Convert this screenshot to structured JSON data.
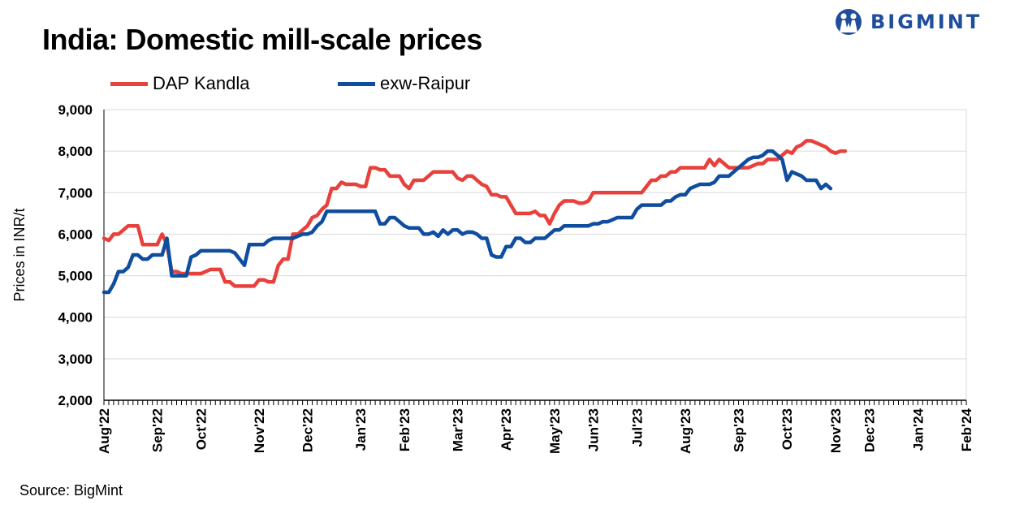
{
  "header": {
    "title": "India: Domestic mill-scale prices"
  },
  "brand": {
    "name": "BIGMINT",
    "color": "#1f4e9c",
    "icon": "people-logo-icon"
  },
  "footer": {
    "source": "Source: BigMint"
  },
  "chart_data": {
    "type": "line",
    "title": "India: Domestic mill-scale prices",
    "xlabel": "",
    "ylabel": "Prices in INR/t",
    "ylim": [
      2000,
      9000
    ],
    "yticks": [
      "9,000",
      "8,000",
      "7,000",
      "6,000",
      "5,000",
      "4,000",
      "3,000",
      "2,000"
    ],
    "ytick_values": [
      9000,
      8000,
      7000,
      6000,
      5000,
      4000,
      3000,
      2000
    ],
    "x_month_labels": [
      "Aug'22",
      "Sep'22",
      "Oct'22",
      "Nov'22",
      "Dec'22",
      "Jan'23",
      "Feb'23",
      "Mar'23",
      "Apr'23",
      "May'23",
      "Jun'23",
      "Jul'23",
      "Aug'23",
      "Sep'23",
      "Oct'23",
      "Nov'23",
      "Dec'23",
      "Jan'24",
      "Feb'24"
    ],
    "x_month_index": [
      0,
      11,
      20,
      32,
      42,
      53,
      62,
      73,
      83,
      93,
      101,
      110,
      120,
      131,
      141,
      151,
      158,
      168,
      178
    ],
    "n_points": 179,
    "legend_position": "top-left",
    "series": [
      {
        "name": "DAP Kandla",
        "color": "#e8413c",
        "points": [
          [
            0,
            5900
          ],
          [
            1,
            5850
          ],
          [
            2,
            6000
          ],
          [
            3,
            6000
          ],
          [
            4,
            6100
          ],
          [
            5,
            6200
          ],
          [
            6,
            6200
          ],
          [
            7,
            6200
          ],
          [
            8,
            5750
          ],
          [
            9,
            5750
          ],
          [
            10,
            5750
          ],
          [
            11,
            5750
          ],
          [
            12,
            6000
          ],
          [
            13,
            5750
          ],
          [
            14,
            5100
          ],
          [
            15,
            5100
          ],
          [
            16,
            5050
          ],
          [
            17,
            5050
          ],
          [
            18,
            5050
          ],
          [
            19,
            5050
          ],
          [
            20,
            5050
          ],
          [
            21,
            5100
          ],
          [
            22,
            5150
          ],
          [
            23,
            5150
          ],
          [
            24,
            5150
          ],
          [
            25,
            4850
          ],
          [
            26,
            4850
          ],
          [
            27,
            4750
          ],
          [
            28,
            4750
          ],
          [
            29,
            4750
          ],
          [
            30,
            4750
          ],
          [
            31,
            4750
          ],
          [
            32,
            4900
          ],
          [
            33,
            4900
          ],
          [
            34,
            4850
          ],
          [
            35,
            4850
          ],
          [
            36,
            5250
          ],
          [
            37,
            5400
          ],
          [
            38,
            5400
          ],
          [
            39,
            6000
          ],
          [
            40,
            6000
          ],
          [
            41,
            6100
          ],
          [
            42,
            6200
          ],
          [
            43,
            6400
          ],
          [
            44,
            6450
          ],
          [
            45,
            6600
          ],
          [
            46,
            6700
          ],
          [
            47,
            7100
          ],
          [
            48,
            7100
          ],
          [
            49,
            7250
          ],
          [
            50,
            7200
          ],
          [
            51,
            7200
          ],
          [
            52,
            7200
          ],
          [
            53,
            7150
          ],
          [
            54,
            7150
          ],
          [
            55,
            7600
          ],
          [
            56,
            7600
          ],
          [
            57,
            7550
          ],
          [
            58,
            7550
          ],
          [
            59,
            7400
          ],
          [
            60,
            7400
          ],
          [
            61,
            7400
          ],
          [
            62,
            7200
          ],
          [
            63,
            7100
          ],
          [
            64,
            7300
          ],
          [
            65,
            7300
          ],
          [
            66,
            7300
          ],
          [
            67,
            7400
          ],
          [
            68,
            7500
          ],
          [
            69,
            7500
          ],
          [
            70,
            7500
          ],
          [
            71,
            7500
          ],
          [
            72,
            7500
          ],
          [
            73,
            7350
          ],
          [
            74,
            7300
          ],
          [
            75,
            7400
          ],
          [
            76,
            7400
          ],
          [
            77,
            7300
          ],
          [
            78,
            7200
          ],
          [
            79,
            7150
          ],
          [
            80,
            6950
          ],
          [
            81,
            6950
          ],
          [
            82,
            6900
          ],
          [
            83,
            6900
          ],
          [
            84,
            6700
          ],
          [
            85,
            6500
          ],
          [
            86,
            6500
          ],
          [
            87,
            6500
          ],
          [
            88,
            6500
          ],
          [
            89,
            6550
          ],
          [
            90,
            6450
          ],
          [
            91,
            6450
          ],
          [
            92,
            6250
          ],
          [
            93,
            6500
          ],
          [
            94,
            6700
          ],
          [
            95,
            6800
          ],
          [
            96,
            6800
          ],
          [
            97,
            6800
          ],
          [
            98,
            6750
          ],
          [
            99,
            6750
          ],
          [
            100,
            6800
          ],
          [
            101,
            7000
          ],
          [
            102,
            7000
          ],
          [
            103,
            7000
          ],
          [
            104,
            7000
          ],
          [
            105,
            7000
          ],
          [
            106,
            7000
          ],
          [
            107,
            7000
          ],
          [
            108,
            7000
          ],
          [
            109,
            7000
          ],
          [
            110,
            7000
          ],
          [
            111,
            7000
          ],
          [
            112,
            7150
          ],
          [
            113,
            7300
          ],
          [
            114,
            7300
          ],
          [
            115,
            7400
          ],
          [
            116,
            7400
          ],
          [
            117,
            7500
          ],
          [
            118,
            7500
          ],
          [
            119,
            7600
          ],
          [
            120,
            7600
          ],
          [
            121,
            7600
          ],
          [
            122,
            7600
          ],
          [
            123,
            7600
          ],
          [
            124,
            7600
          ],
          [
            125,
            7800
          ],
          [
            126,
            7650
          ],
          [
            127,
            7800
          ],
          [
            128,
            7700
          ],
          [
            129,
            7600
          ],
          [
            130,
            7600
          ],
          [
            131,
            7600
          ],
          [
            132,
            7600
          ],
          [
            133,
            7600
          ],
          [
            134,
            7650
          ],
          [
            135,
            7700
          ],
          [
            136,
            7700
          ],
          [
            137,
            7800
          ],
          [
            138,
            7800
          ],
          [
            139,
            7800
          ],
          [
            140,
            7900
          ],
          [
            141,
            8000
          ],
          [
            142,
            7950
          ],
          [
            143,
            8100
          ],
          [
            144,
            8150
          ],
          [
            145,
            8250
          ],
          [
            146,
            8250
          ],
          [
            147,
            8200
          ],
          [
            148,
            8150
          ],
          [
            149,
            8100
          ],
          [
            150,
            8000
          ],
          [
            151,
            7950
          ],
          [
            152,
            8000
          ],
          [
            153,
            8000
          ]
        ]
      },
      {
        "name": "exw-Raipur",
        "color": "#0f4d9e",
        "points": [
          [
            0,
            4600
          ],
          [
            1,
            4600
          ],
          [
            2,
            4800
          ],
          [
            3,
            5100
          ],
          [
            4,
            5100
          ],
          [
            5,
            5200
          ],
          [
            6,
            5500
          ],
          [
            7,
            5500
          ],
          [
            8,
            5400
          ],
          [
            9,
            5400
          ],
          [
            10,
            5500
          ],
          [
            11,
            5500
          ],
          [
            12,
            5500
          ],
          [
            13,
            5900
          ],
          [
            14,
            5000
          ],
          [
            15,
            5000
          ],
          [
            16,
            5000
          ],
          [
            17,
            5000
          ],
          [
            18,
            5450
          ],
          [
            19,
            5500
          ],
          [
            20,
            5600
          ],
          [
            21,
            5600
          ],
          [
            22,
            5600
          ],
          [
            23,
            5600
          ],
          [
            24,
            5600
          ],
          [
            25,
            5600
          ],
          [
            26,
            5600
          ],
          [
            27,
            5550
          ],
          [
            28,
            5400
          ],
          [
            29,
            5250
          ],
          [
            30,
            5750
          ],
          [
            31,
            5750
          ],
          [
            32,
            5750
          ],
          [
            33,
            5750
          ],
          [
            34,
            5850
          ],
          [
            35,
            5900
          ],
          [
            36,
            5900
          ],
          [
            37,
            5900
          ],
          [
            38,
            5900
          ],
          [
            39,
            5900
          ],
          [
            40,
            5950
          ],
          [
            41,
            6000
          ],
          [
            42,
            6000
          ],
          [
            43,
            6050
          ],
          [
            44,
            6200
          ],
          [
            45,
            6300
          ],
          [
            46,
            6550
          ],
          [
            47,
            6550
          ],
          [
            48,
            6550
          ],
          [
            49,
            6550
          ],
          [
            50,
            6550
          ],
          [
            51,
            6550
          ],
          [
            52,
            6550
          ],
          [
            53,
            6550
          ],
          [
            54,
            6550
          ],
          [
            55,
            6550
          ],
          [
            56,
            6550
          ],
          [
            57,
            6250
          ],
          [
            58,
            6250
          ],
          [
            59,
            6400
          ],
          [
            60,
            6400
          ],
          [
            61,
            6300
          ],
          [
            62,
            6200
          ],
          [
            63,
            6150
          ],
          [
            64,
            6150
          ],
          [
            65,
            6150
          ],
          [
            66,
            6000
          ],
          [
            67,
            6000
          ],
          [
            68,
            6050
          ],
          [
            69,
            5950
          ],
          [
            70,
            6100
          ],
          [
            71,
            6000
          ],
          [
            72,
            6100
          ],
          [
            73,
            6100
          ],
          [
            74,
            6000
          ],
          [
            75,
            6050
          ],
          [
            76,
            6050
          ],
          [
            77,
            6000
          ],
          [
            78,
            5900
          ],
          [
            79,
            5900
          ],
          [
            80,
            5500
          ],
          [
            81,
            5450
          ],
          [
            82,
            5450
          ],
          [
            83,
            5700
          ],
          [
            84,
            5700
          ],
          [
            85,
            5900
          ],
          [
            86,
            5900
          ],
          [
            87,
            5800
          ],
          [
            88,
            5800
          ],
          [
            89,
            5900
          ],
          [
            90,
            5900
          ],
          [
            91,
            5900
          ],
          [
            92,
            6000
          ],
          [
            93,
            6100
          ],
          [
            94,
            6100
          ],
          [
            95,
            6200
          ],
          [
            96,
            6200
          ],
          [
            97,
            6200
          ],
          [
            98,
            6200
          ],
          [
            99,
            6200
          ],
          [
            100,
            6200
          ],
          [
            101,
            6250
          ],
          [
            102,
            6250
          ],
          [
            103,
            6300
          ],
          [
            104,
            6300
          ],
          [
            105,
            6350
          ],
          [
            106,
            6400
          ],
          [
            107,
            6400
          ],
          [
            108,
            6400
          ],
          [
            109,
            6400
          ],
          [
            110,
            6600
          ],
          [
            111,
            6700
          ],
          [
            112,
            6700
          ],
          [
            113,
            6700
          ],
          [
            114,
            6700
          ],
          [
            115,
            6700
          ],
          [
            116,
            6800
          ],
          [
            117,
            6800
          ],
          [
            118,
            6900
          ],
          [
            119,
            6950
          ],
          [
            120,
            6950
          ],
          [
            121,
            7100
          ],
          [
            122,
            7150
          ],
          [
            123,
            7200
          ],
          [
            124,
            7200
          ],
          [
            125,
            7200
          ],
          [
            126,
            7250
          ],
          [
            127,
            7400
          ],
          [
            128,
            7400
          ],
          [
            129,
            7400
          ],
          [
            130,
            7500
          ],
          [
            131,
            7600
          ],
          [
            132,
            7700
          ],
          [
            133,
            7800
          ],
          [
            134,
            7850
          ],
          [
            135,
            7850
          ],
          [
            136,
            7900
          ],
          [
            137,
            8000
          ],
          [
            138,
            8000
          ],
          [
            139,
            7900
          ],
          [
            140,
            7800
          ],
          [
            141,
            7300
          ],
          [
            142,
            7500
          ],
          [
            143,
            7450
          ],
          [
            144,
            7400
          ],
          [
            145,
            7300
          ],
          [
            146,
            7300
          ],
          [
            147,
            7300
          ],
          [
            148,
            7100
          ],
          [
            149,
            7200
          ],
          [
            150,
            7100
          ]
        ]
      }
    ]
  }
}
